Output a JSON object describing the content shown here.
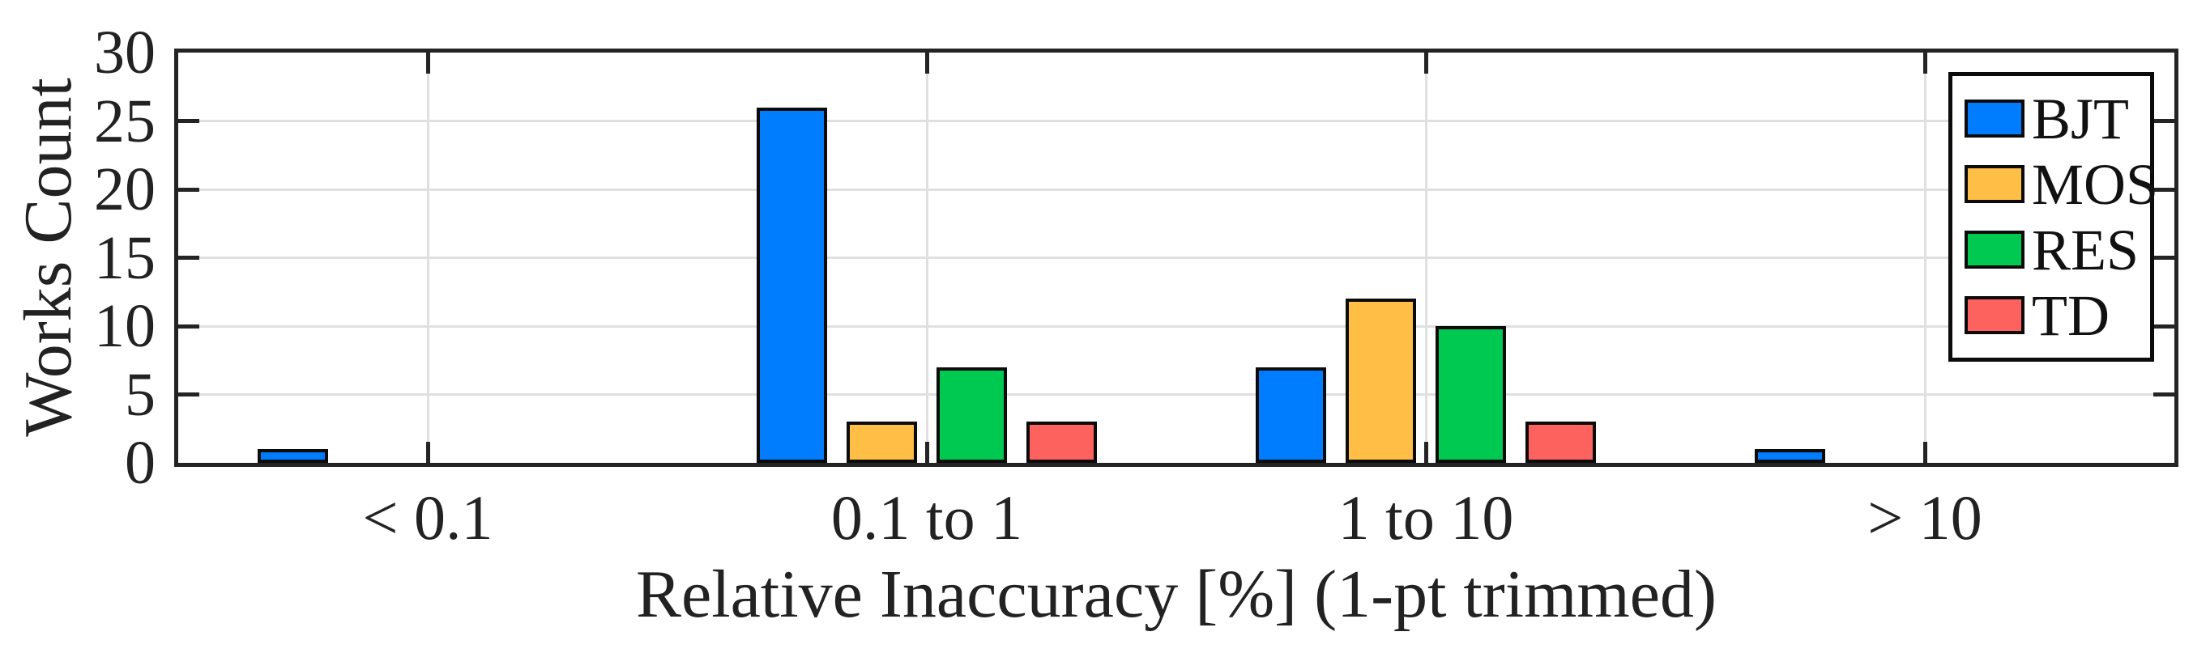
{
  "chart_data": {
    "type": "bar",
    "title": "",
    "xlabel": "Relative Inaccuracy [%] (1-pt trimmed)",
    "ylabel": "Works Count",
    "categories": [
      "< 0.1",
      "0.1 to 1",
      "1 to 10",
      "> 10"
    ],
    "series": [
      {
        "name": "BJT",
        "color": "#007CFF",
        "values": [
          1,
          26,
          7,
          1
        ]
      },
      {
        "name": "MOS",
        "color": "#FFBE45",
        "values": [
          0,
          3,
          12,
          0
        ]
      },
      {
        "name": "RES",
        "color": "#00C952",
        "values": [
          0,
          7,
          10,
          0
        ]
      },
      {
        "name": "TD",
        "color": "#FD625E",
        "values": [
          0,
          3,
          3,
          0
        ]
      }
    ],
    "ylim": [
      0,
      30
    ],
    "yticks": [
      0,
      5,
      10,
      15,
      20,
      25,
      30
    ],
    "grid": true,
    "legend_position": "top-right",
    "colors": {
      "axis": "#242424",
      "gridline": "#e0e0e0",
      "bar_edge": "#0b0b0b",
      "background": "#ffffff"
    }
  }
}
